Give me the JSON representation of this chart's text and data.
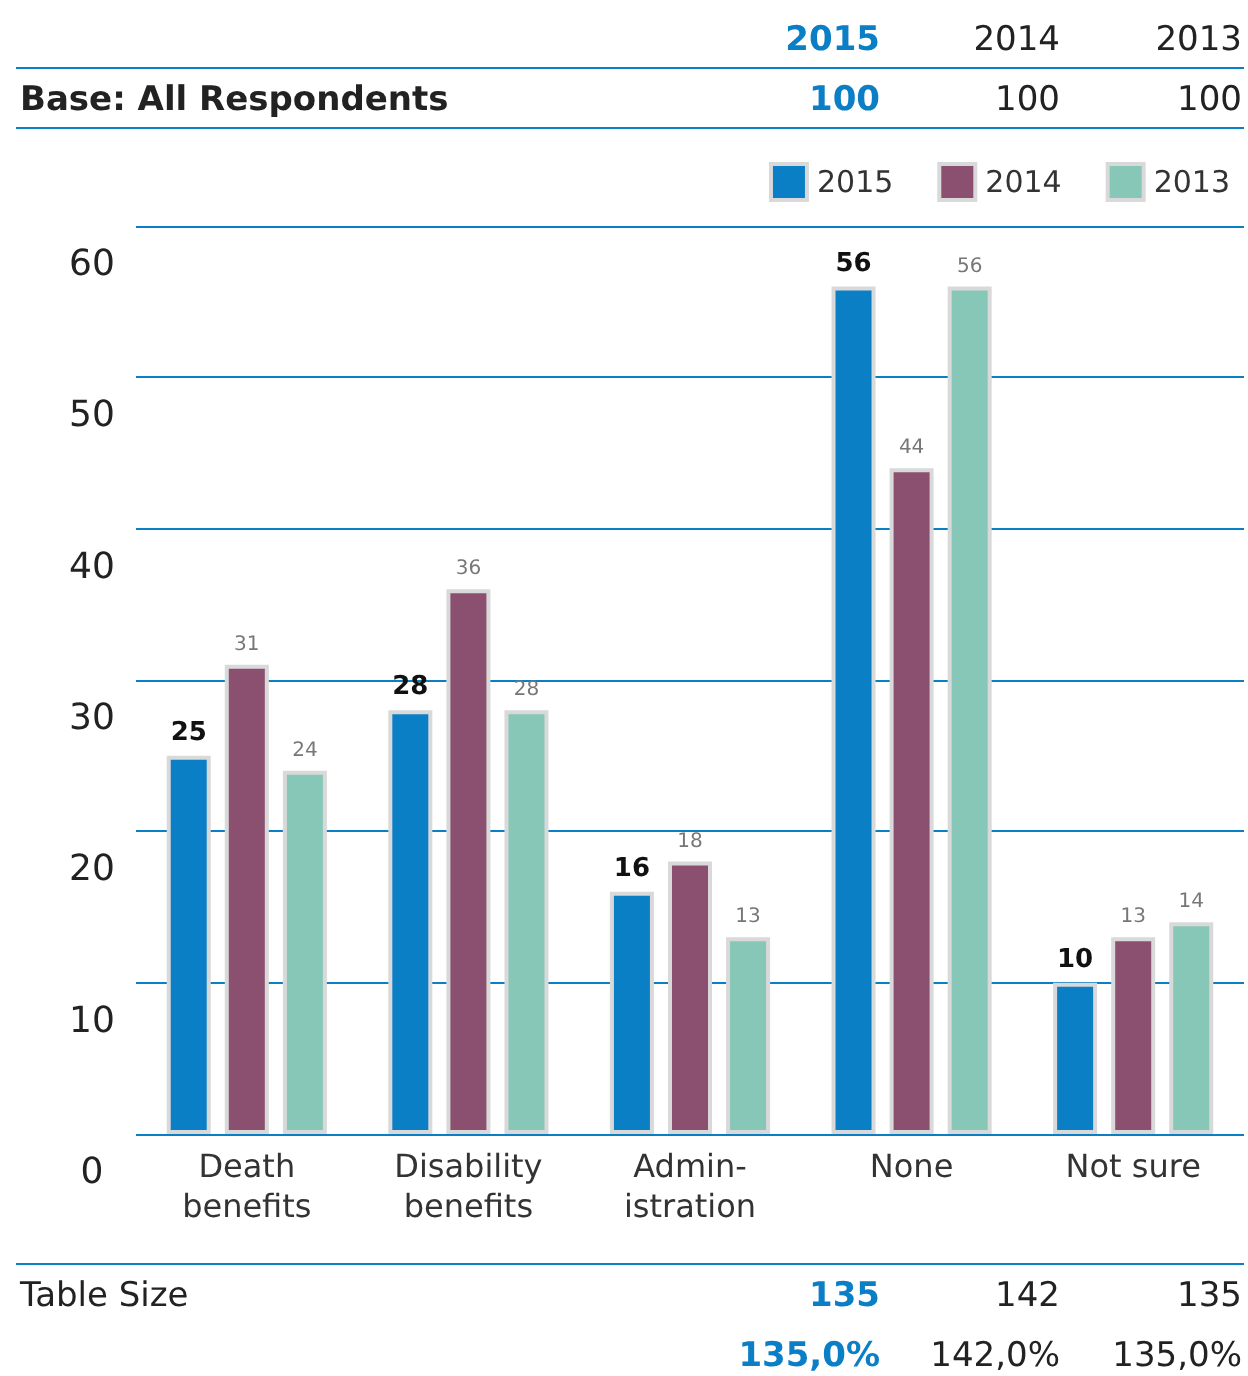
{
  "chart_data": {
    "type": "bar",
    "categories": [
      "Death\nbenefits",
      "Disability\nbenefits",
      "Admin-\nistration",
      "None",
      "Not sure"
    ],
    "series": [
      {
        "name": "2015",
        "color": "#0a7fc6",
        "values": [
          25,
          28,
          16,
          56,
          10
        ]
      },
      {
        "name": "2014",
        "color": "#8b4f70",
        "values": [
          31,
          36,
          18,
          44,
          13
        ]
      },
      {
        "name": "2013",
        "color": "#86c7b8",
        "values": [
          24,
          28,
          13,
          56,
          14
        ]
      }
    ],
    "ylim": [
      0,
      60
    ],
    "yticks": [
      0,
      10,
      20,
      30,
      40,
      50,
      60
    ],
    "grid": "y",
    "legend": "top right",
    "data_labels": true,
    "annotations": [
      "2015",
      "2014",
      "2013",
      "Base: All Respondents",
      "100",
      "100",
      "100",
      "Table Size",
      "135",
      "142",
      "135",
      "135,0%",
      "142,0%",
      "135,0%"
    ]
  }
}
